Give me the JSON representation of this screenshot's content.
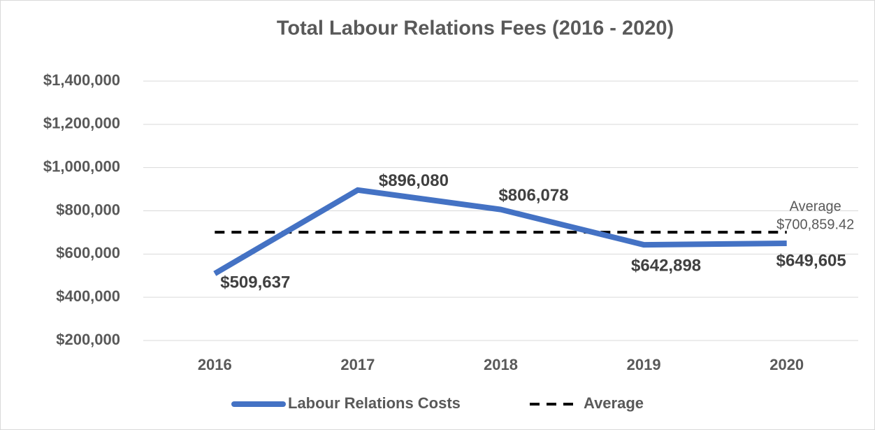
{
  "chart_data": {
    "type": "line",
    "title": "Total Labour Relations Fees (2016 - 2020)",
    "categories": [
      "2016",
      "2017",
      "2018",
      "2019",
      "2020"
    ],
    "series": [
      {
        "name": "Labour Relations Costs",
        "color": "#4472c4",
        "style": "solid",
        "values": [
          509637,
          896080,
          806078,
          642898,
          649605
        ],
        "value_labels": [
          "$509,637",
          "$896,080",
          "$806,078",
          "$642,898",
          "$649,605"
        ]
      },
      {
        "name": "Average",
        "color": "#000000",
        "style": "dashed",
        "values": [
          700859.42,
          700859.42,
          700859.42,
          700859.42,
          700859.42
        ],
        "value_labels": [
          null,
          null,
          null,
          null,
          "$700,859.42"
        ]
      }
    ],
    "ylim": [
      200000,
      1400000
    ],
    "yticks": [
      {
        "value": 200000,
        "label": "$200,000"
      },
      {
        "value": 400000,
        "label": "$400,000"
      },
      {
        "value": 600000,
        "label": "$600,000"
      },
      {
        "value": 800000,
        "label": "$800,000"
      },
      {
        "value": 1000000,
        "label": "$1,000,000"
      },
      {
        "value": 1200000,
        "label": "$1,200,000"
      },
      {
        "value": 1400000,
        "label": "$1,400,000"
      }
    ],
    "grid": true,
    "legend": "bottom"
  }
}
